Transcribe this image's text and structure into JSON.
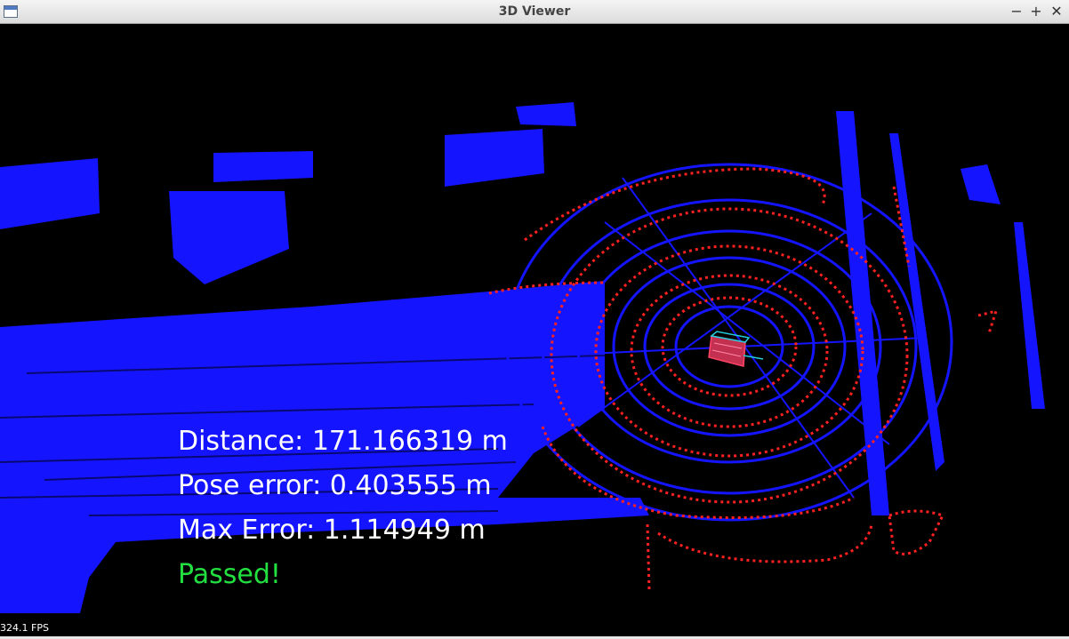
{
  "window": {
    "title": "3D Viewer",
    "icon": "app-window-icon",
    "controls": {
      "minimize": "−",
      "maximize": "+",
      "close": "✕"
    }
  },
  "viewer": {
    "colors": {
      "background": "#000000",
      "map_points": "#1414ff",
      "scan_points": "#ff2020",
      "vehicle_box": "#ff4466",
      "vehicle_outline": "#22ccdd"
    }
  },
  "overlay": {
    "distance": "Distance: 171.166319 m",
    "pose_error": "Pose error: 0.403555 m",
    "max_error": "Max Error: 1.114949 m",
    "status": "Passed!",
    "status_color": "#22e040"
  },
  "fps": "324.1 FPS"
}
